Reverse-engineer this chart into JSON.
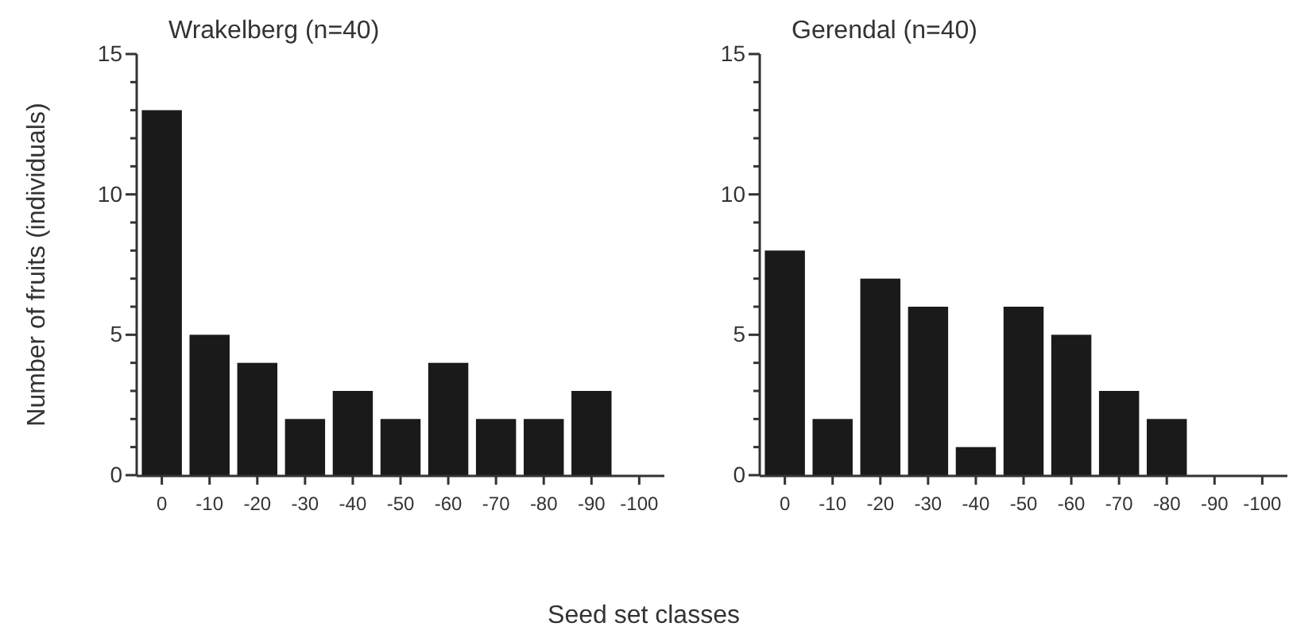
{
  "chart_data": [
    {
      "type": "bar",
      "title": "Wrakelberg (n=40)",
      "xlabel": "Seed set classes",
      "ylabel": "Number of fruits (individuals)",
      "categories": [
        "0",
        "-10",
        "-20",
        "-30",
        "-40",
        "-50",
        "-60",
        "-70",
        "-80",
        "-90",
        "-100"
      ],
      "values": [
        13,
        5,
        4,
        2,
        3,
        2,
        4,
        2,
        2,
        3,
        0
      ],
      "color": "#1a1a1a",
      "ylim": [
        0,
        15
      ],
      "yticks": [
        0,
        {
          "value": 1,
          "label": null
        },
        {
          "value": 2,
          "label": null
        },
        {
          "value": 3,
          "label": null
        },
        {
          "value": 4,
          "label": null
        },
        5,
        {
          "value": 6,
          "label": null
        },
        {
          "value": 7,
          "label": null
        },
        {
          "value": 8,
          "label": null
        },
        {
          "value": 9,
          "label": null
        },
        10,
        {
          "value": 11,
          "label": null
        },
        {
          "value": 12,
          "label": null
        },
        {
          "value": 13,
          "label": null
        },
        {
          "value": 14,
          "label": null
        },
        15
      ],
      "grid": false
    },
    {
      "type": "bar",
      "title": "Gerendal (n=40)",
      "categories": [
        "0",
        "-10",
        "-20",
        "-30",
        "-40",
        "-50",
        "-60",
        "-70",
        "-80",
        "-90",
        "-100"
      ],
      "values": [
        8,
        2,
        7,
        6,
        1,
        6,
        5,
        3,
        2,
        0,
        0
      ],
      "color": "#1a1a1a",
      "ylim": [
        0,
        15
      ],
      "yticks": [
        0,
        {
          "value": 1,
          "label": null
        },
        {
          "value": 2,
          "label": null
        },
        {
          "value": 3,
          "label": null
        },
        {
          "value": 4,
          "label": null
        },
        5,
        {
          "value": 6,
          "label": null
        },
        {
          "value": 7,
          "label": null
        },
        {
          "value": 8,
          "label": null
        },
        {
          "value": 9,
          "label": null
        },
        10,
        {
          "value": 11,
          "label": null
        },
        {
          "value": 12,
          "label": null
        },
        {
          "value": 13,
          "label": null
        },
        {
          "value": 14,
          "label": null
        },
        15
      ],
      "grid": false
    }
  ]
}
